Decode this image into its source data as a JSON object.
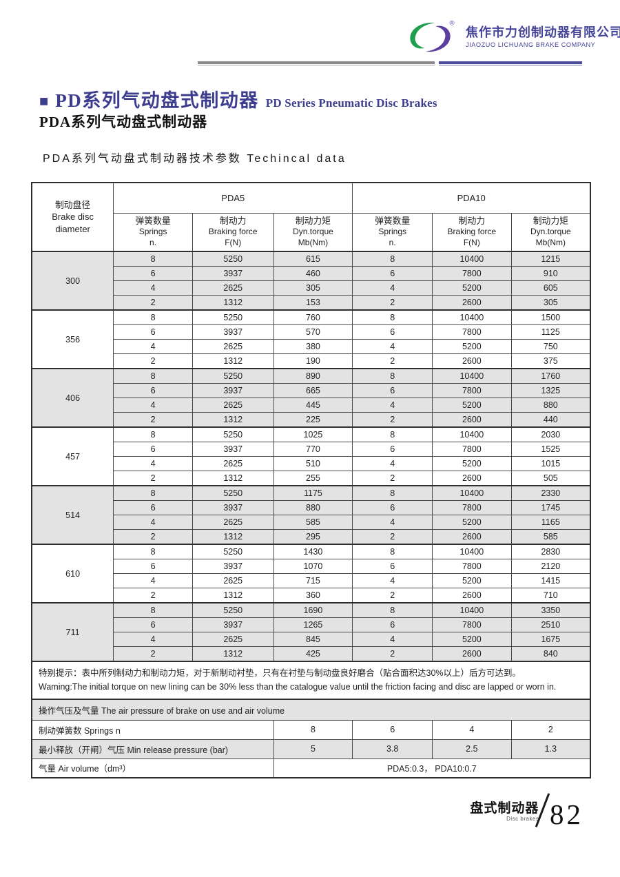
{
  "colors": {
    "brand_purple": "#45459a",
    "title_purple": "#3d3d90",
    "logo_green": "#1f9e4e",
    "logo_purple": "#5b3f9e",
    "row_shade": "#e3e3e3"
  },
  "brand": {
    "company_cn": "焦作市力创制动器有限公司",
    "company_en": "JIAOZUO LICHUANG BRAKE COMPANY",
    "registered_mark": "®",
    "logo": "lichuang-swirl-logo"
  },
  "titles": {
    "bullet": "■",
    "main_cn": "PD系列气动盘式制动器",
    "main_en": "PD Series Pneumatic Disc Brakes",
    "series_cn": "PDA系列气动盘式制动器",
    "table_heading": "PDA系列气动盘式制动器技术参数 Techincal data"
  },
  "table": {
    "corner": {
      "cn": "制动盘径",
      "en_line1": "Brake disc",
      "en_line2": "diameter"
    },
    "models": [
      "PDA5",
      "PDA10"
    ],
    "columns": [
      {
        "cn": "弹簧数量",
        "en": "Springs",
        "unit": "n."
      },
      {
        "cn": "制动力",
        "en": "Braking force",
        "unit": "F(N)"
      },
      {
        "cn": "制动力矩",
        "en": "Dyn.torque",
        "unit": "Mb(Nm)"
      }
    ],
    "groups": [
      {
        "diameter": "300",
        "shaded": true,
        "rows": [
          [
            "8",
            "5250",
            "615",
            "8",
            "10400",
            "1215"
          ],
          [
            "6",
            "3937",
            "460",
            "6",
            "7800",
            "910"
          ],
          [
            "4",
            "2625",
            "305",
            "4",
            "5200",
            "605"
          ],
          [
            "2",
            "1312",
            "153",
            "2",
            "2600",
            "305"
          ]
        ]
      },
      {
        "diameter": "356",
        "shaded": false,
        "rows": [
          [
            "8",
            "5250",
            "760",
            "8",
            "10400",
            "1500"
          ],
          [
            "6",
            "3937",
            "570",
            "6",
            "7800",
            "1125"
          ],
          [
            "4",
            "2625",
            "380",
            "4",
            "5200",
            "750"
          ],
          [
            "2",
            "1312",
            "190",
            "2",
            "2600",
            "375"
          ]
        ]
      },
      {
        "diameter": "406",
        "shaded": true,
        "rows": [
          [
            "8",
            "5250",
            "890",
            "8",
            "10400",
            "1760"
          ],
          [
            "6",
            "3937",
            "665",
            "6",
            "7800",
            "1325"
          ],
          [
            "4",
            "2625",
            "445",
            "4",
            "5200",
            "880"
          ],
          [
            "2",
            "1312",
            "225",
            "2",
            "2600",
            "440"
          ]
        ]
      },
      {
        "diameter": "457",
        "shaded": false,
        "rows": [
          [
            "8",
            "5250",
            "1025",
            "8",
            "10400",
            "2030"
          ],
          [
            "6",
            "3937",
            "770",
            "6",
            "7800",
            "1525"
          ],
          [
            "4",
            "2625",
            "510",
            "4",
            "5200",
            "1015"
          ],
          [
            "2",
            "1312",
            "255",
            "2",
            "2600",
            "505"
          ]
        ]
      },
      {
        "diameter": "514",
        "shaded": true,
        "rows": [
          [
            "8",
            "5250",
            "1175",
            "8",
            "10400",
            "2330"
          ],
          [
            "6",
            "3937",
            "880",
            "6",
            "7800",
            "1745"
          ],
          [
            "4",
            "2625",
            "585",
            "4",
            "5200",
            "1165"
          ],
          [
            "2",
            "1312",
            "295",
            "2",
            "2600",
            "585"
          ]
        ]
      },
      {
        "diameter": "610",
        "shaded": false,
        "rows": [
          [
            "8",
            "5250",
            "1430",
            "8",
            "10400",
            "2830"
          ],
          [
            "6",
            "3937",
            "1070",
            "6",
            "7800",
            "2120"
          ],
          [
            "4",
            "2625",
            "715",
            "4",
            "5200",
            "1415"
          ],
          [
            "2",
            "1312",
            "360",
            "2",
            "2600",
            "710"
          ]
        ]
      },
      {
        "diameter": "711",
        "shaded": true,
        "rows": [
          [
            "8",
            "5250",
            "1690",
            "8",
            "10400",
            "3350"
          ],
          [
            "6",
            "3937",
            "1265",
            "6",
            "7800",
            "2510"
          ],
          [
            "4",
            "2625",
            "845",
            "4",
            "5200",
            "1675"
          ],
          [
            "2",
            "1312",
            "425",
            "2",
            "2600",
            "840"
          ]
        ]
      }
    ]
  },
  "warning": {
    "cn": "特别提示：表中所列制动力和制动力矩，对于新制动衬垫，只有在衬垫与制动盘良好磨合（贴合面积达30%以上）后方可达到。",
    "en": "Waming:The initial torque on new lining can be 30% less than the catalogue value until the friction facing and disc are lapped or worn in."
  },
  "pressure": {
    "header": "操作气压及气量 The air pressure of brake on use and air volume",
    "rows": [
      {
        "label": "制动弹簧数  Springs n",
        "values": [
          "8",
          "6",
          "4",
          "2"
        ],
        "shaded": false
      },
      {
        "label": "最小释放（开闸）气压  Min release pressure (bar)",
        "values": [
          "5",
          "3.8",
          "2.5",
          "1.3"
        ],
        "shaded": true
      },
      {
        "label": "气量  Air volume（dm³）",
        "span_value": "PDA5:0.3，  PDA10:0.7",
        "shaded": false
      }
    ]
  },
  "footer": {
    "cn": "盘式制动器",
    "en": "Disc brakes",
    "page_number": "82"
  }
}
